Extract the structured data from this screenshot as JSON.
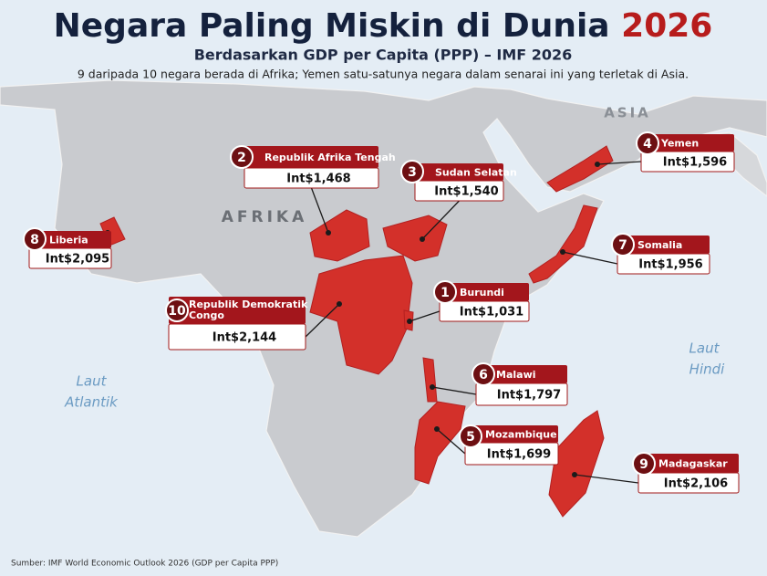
{
  "header": {
    "title_main": "Negara Paling Miskin di Dunia",
    "title_year": "2026",
    "subtitle": "Berdasarkan GDP per Capita (PPP) – IMF 2026",
    "note": "9 daripada 10 negara berada di Afrika; Yemen satu-satunya negara dalam senarai ini yang terletak di Asia."
  },
  "map_labels": {
    "asia": "ASIA",
    "africa": "AFRIKA",
    "atlantic": [
      "Laut",
      "Atlantik"
    ],
    "indian": [
      "Laut",
      "Hindi"
    ]
  },
  "countries": [
    {
      "rank": 1,
      "name": "Burundi",
      "value": "Int$1,031"
    },
    {
      "rank": 2,
      "name": "Republik Afrika Tengah",
      "value": "Int$1,468"
    },
    {
      "rank": 3,
      "name": "Sudan Selatan",
      "value": "Int$1,540"
    },
    {
      "rank": 4,
      "name": "Yemen",
      "value": "Int$1,596"
    },
    {
      "rank": 5,
      "name": "Mozambique",
      "value": "Int$1,699"
    },
    {
      "rank": 6,
      "name": "Malawi",
      "value": "Int$1,797"
    },
    {
      "rank": 7,
      "name": "Somalia",
      "value": "Int$1,956"
    },
    {
      "rank": 8,
      "name": "Liberia",
      "value": "Int$2,095"
    },
    {
      "rank": 9,
      "name": "Madagaskar",
      "value": "Int$2,106"
    },
    {
      "rank": 10,
      "name": "Republik Demokratik Congo",
      "value": "Int$2,144"
    }
  ],
  "footer": "Sumber: IMF World Economic Outlook 2026 (GDP per Capita PPP)"
}
